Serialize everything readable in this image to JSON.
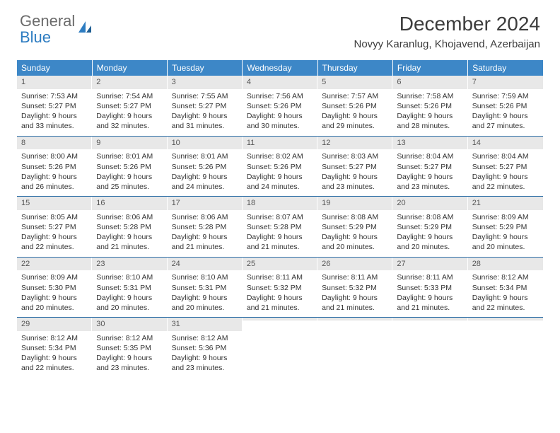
{
  "brand": {
    "line1": "General",
    "line2": "Blue"
  },
  "title": "December 2024",
  "location": "Novyy Karanlug, Khojavend, Azerbaijan",
  "colors": {
    "header_bg": "#3d87c7",
    "header_text": "#ffffff",
    "row_border": "#2d6ea6",
    "daynum_bg": "#e8e8e8",
    "text": "#333333",
    "brand_gray": "#6b6b6b",
    "brand_blue": "#2d7cc1",
    "background": "#ffffff"
  },
  "fonts": {
    "title_size": 28,
    "location_size": 15,
    "dayheader_size": 12,
    "body_size": 10.5
  },
  "day_headers": [
    "Sunday",
    "Monday",
    "Tuesday",
    "Wednesday",
    "Thursday",
    "Friday",
    "Saturday"
  ],
  "weeks": [
    [
      {
        "n": "1",
        "sunrise": "Sunrise: 7:53 AM",
        "sunset": "Sunset: 5:27 PM",
        "daylight": "Daylight: 9 hours and 33 minutes."
      },
      {
        "n": "2",
        "sunrise": "Sunrise: 7:54 AM",
        "sunset": "Sunset: 5:27 PM",
        "daylight": "Daylight: 9 hours and 32 minutes."
      },
      {
        "n": "3",
        "sunrise": "Sunrise: 7:55 AM",
        "sunset": "Sunset: 5:27 PM",
        "daylight": "Daylight: 9 hours and 31 minutes."
      },
      {
        "n": "4",
        "sunrise": "Sunrise: 7:56 AM",
        "sunset": "Sunset: 5:26 PM",
        "daylight": "Daylight: 9 hours and 30 minutes."
      },
      {
        "n": "5",
        "sunrise": "Sunrise: 7:57 AM",
        "sunset": "Sunset: 5:26 PM",
        "daylight": "Daylight: 9 hours and 29 minutes."
      },
      {
        "n": "6",
        "sunrise": "Sunrise: 7:58 AM",
        "sunset": "Sunset: 5:26 PM",
        "daylight": "Daylight: 9 hours and 28 minutes."
      },
      {
        "n": "7",
        "sunrise": "Sunrise: 7:59 AM",
        "sunset": "Sunset: 5:26 PM",
        "daylight": "Daylight: 9 hours and 27 minutes."
      }
    ],
    [
      {
        "n": "8",
        "sunrise": "Sunrise: 8:00 AM",
        "sunset": "Sunset: 5:26 PM",
        "daylight": "Daylight: 9 hours and 26 minutes."
      },
      {
        "n": "9",
        "sunrise": "Sunrise: 8:01 AM",
        "sunset": "Sunset: 5:26 PM",
        "daylight": "Daylight: 9 hours and 25 minutes."
      },
      {
        "n": "10",
        "sunrise": "Sunrise: 8:01 AM",
        "sunset": "Sunset: 5:26 PM",
        "daylight": "Daylight: 9 hours and 24 minutes."
      },
      {
        "n": "11",
        "sunrise": "Sunrise: 8:02 AM",
        "sunset": "Sunset: 5:26 PM",
        "daylight": "Daylight: 9 hours and 24 minutes."
      },
      {
        "n": "12",
        "sunrise": "Sunrise: 8:03 AM",
        "sunset": "Sunset: 5:27 PM",
        "daylight": "Daylight: 9 hours and 23 minutes."
      },
      {
        "n": "13",
        "sunrise": "Sunrise: 8:04 AM",
        "sunset": "Sunset: 5:27 PM",
        "daylight": "Daylight: 9 hours and 23 minutes."
      },
      {
        "n": "14",
        "sunrise": "Sunrise: 8:04 AM",
        "sunset": "Sunset: 5:27 PM",
        "daylight": "Daylight: 9 hours and 22 minutes."
      }
    ],
    [
      {
        "n": "15",
        "sunrise": "Sunrise: 8:05 AM",
        "sunset": "Sunset: 5:27 PM",
        "daylight": "Daylight: 9 hours and 22 minutes."
      },
      {
        "n": "16",
        "sunrise": "Sunrise: 8:06 AM",
        "sunset": "Sunset: 5:28 PM",
        "daylight": "Daylight: 9 hours and 21 minutes."
      },
      {
        "n": "17",
        "sunrise": "Sunrise: 8:06 AM",
        "sunset": "Sunset: 5:28 PM",
        "daylight": "Daylight: 9 hours and 21 minutes."
      },
      {
        "n": "18",
        "sunrise": "Sunrise: 8:07 AM",
        "sunset": "Sunset: 5:28 PM",
        "daylight": "Daylight: 9 hours and 21 minutes."
      },
      {
        "n": "19",
        "sunrise": "Sunrise: 8:08 AM",
        "sunset": "Sunset: 5:29 PM",
        "daylight": "Daylight: 9 hours and 20 minutes."
      },
      {
        "n": "20",
        "sunrise": "Sunrise: 8:08 AM",
        "sunset": "Sunset: 5:29 PM",
        "daylight": "Daylight: 9 hours and 20 minutes."
      },
      {
        "n": "21",
        "sunrise": "Sunrise: 8:09 AM",
        "sunset": "Sunset: 5:29 PM",
        "daylight": "Daylight: 9 hours and 20 minutes."
      }
    ],
    [
      {
        "n": "22",
        "sunrise": "Sunrise: 8:09 AM",
        "sunset": "Sunset: 5:30 PM",
        "daylight": "Daylight: 9 hours and 20 minutes."
      },
      {
        "n": "23",
        "sunrise": "Sunrise: 8:10 AM",
        "sunset": "Sunset: 5:31 PM",
        "daylight": "Daylight: 9 hours and 20 minutes."
      },
      {
        "n": "24",
        "sunrise": "Sunrise: 8:10 AM",
        "sunset": "Sunset: 5:31 PM",
        "daylight": "Daylight: 9 hours and 20 minutes."
      },
      {
        "n": "25",
        "sunrise": "Sunrise: 8:11 AM",
        "sunset": "Sunset: 5:32 PM",
        "daylight": "Daylight: 9 hours and 21 minutes."
      },
      {
        "n": "26",
        "sunrise": "Sunrise: 8:11 AM",
        "sunset": "Sunset: 5:32 PM",
        "daylight": "Daylight: 9 hours and 21 minutes."
      },
      {
        "n": "27",
        "sunrise": "Sunrise: 8:11 AM",
        "sunset": "Sunset: 5:33 PM",
        "daylight": "Daylight: 9 hours and 21 minutes."
      },
      {
        "n": "28",
        "sunrise": "Sunrise: 8:12 AM",
        "sunset": "Sunset: 5:34 PM",
        "daylight": "Daylight: 9 hours and 22 minutes."
      }
    ],
    [
      {
        "n": "29",
        "sunrise": "Sunrise: 8:12 AM",
        "sunset": "Sunset: 5:34 PM",
        "daylight": "Daylight: 9 hours and 22 minutes."
      },
      {
        "n": "30",
        "sunrise": "Sunrise: 8:12 AM",
        "sunset": "Sunset: 5:35 PM",
        "daylight": "Daylight: 9 hours and 23 minutes."
      },
      {
        "n": "31",
        "sunrise": "Sunrise: 8:12 AM",
        "sunset": "Sunset: 5:36 PM",
        "daylight": "Daylight: 9 hours and 23 minutes."
      },
      {
        "n": "",
        "sunrise": "",
        "sunset": "",
        "daylight": ""
      },
      {
        "n": "",
        "sunrise": "",
        "sunset": "",
        "daylight": ""
      },
      {
        "n": "",
        "sunrise": "",
        "sunset": "",
        "daylight": ""
      },
      {
        "n": "",
        "sunrise": "",
        "sunset": "",
        "daylight": ""
      }
    ]
  ]
}
